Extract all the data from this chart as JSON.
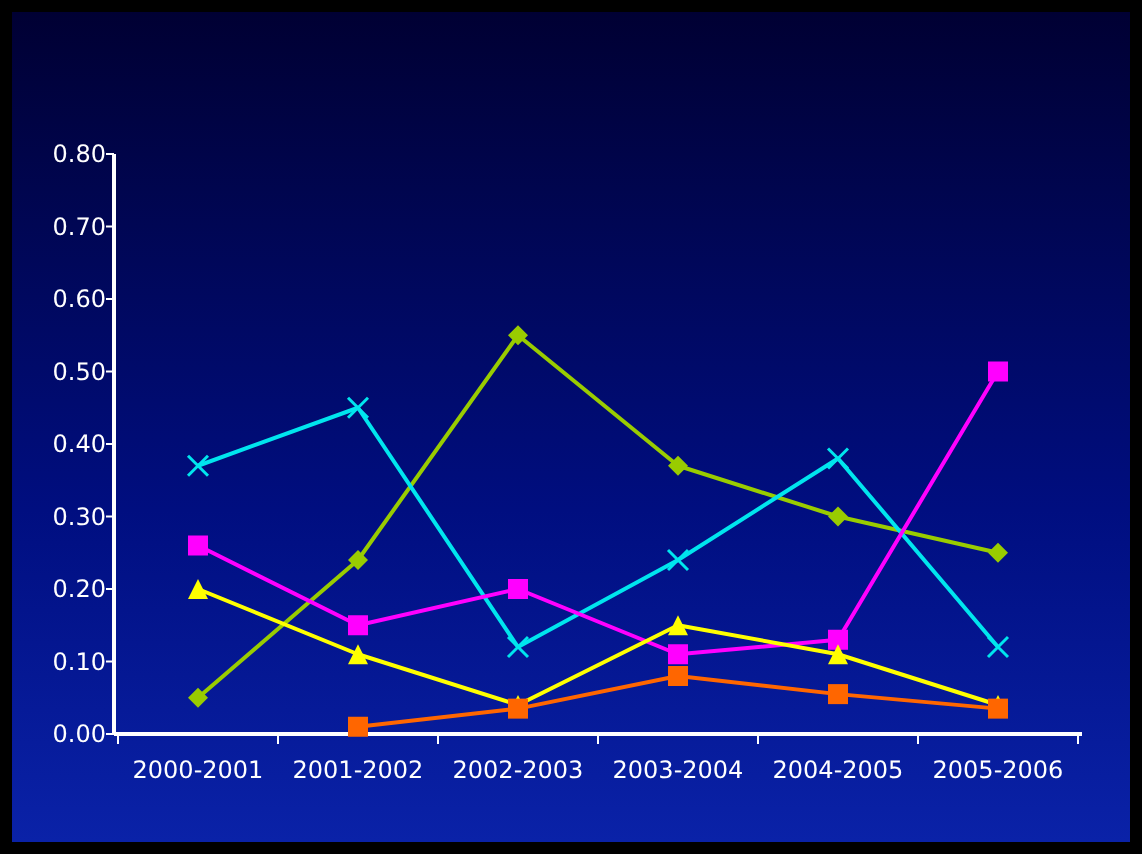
{
  "chart_data": {
    "type": "line",
    "categories": [
      "2000-2001",
      "2001-2002",
      "2002-2003",
      "2003-2004",
      "2004-2005",
      "2005-2006"
    ],
    "series": [
      {
        "color": "#99cc00",
        "marker": "diamond",
        "values": [
          0.05,
          0.24,
          0.55,
          0.37,
          0.3,
          0.25
        ]
      },
      {
        "color": "#00e5ee",
        "marker": "cross",
        "values": [
          0.37,
          0.45,
          0.12,
          0.24,
          0.38,
          0.12
        ]
      },
      {
        "color": "#ff00ff",
        "marker": "square",
        "values": [
          0.26,
          0.15,
          0.2,
          0.11,
          0.13,
          0.5
        ]
      },
      {
        "color": "#ffff00",
        "marker": "triangle",
        "values": [
          0.2,
          0.11,
          0.04,
          0.15,
          0.11,
          0.04
        ]
      },
      {
        "color": "#ff6600",
        "marker": "square",
        "values": [
          null,
          0.01,
          0.035,
          0.08,
          0.055,
          0.035
        ]
      }
    ],
    "ylim": [
      0,
      0.8
    ],
    "yticks": [
      {
        "value": 0,
        "label": "0.00"
      },
      {
        "value": 0.1,
        "label": "0.10"
      },
      {
        "value": 0.2,
        "label": "0.20"
      },
      {
        "value": 0.3,
        "label": "0.30"
      },
      {
        "value": 0.4,
        "label": "0.40"
      },
      {
        "value": 0.5,
        "label": "0.50"
      },
      {
        "value": 0.6,
        "label": "0.60"
      },
      {
        "value": 0.7,
        "label": "0.70"
      },
      {
        "value": 0.8,
        "label": "0.80"
      }
    ],
    "grid": false,
    "line_style": "solid"
  }
}
